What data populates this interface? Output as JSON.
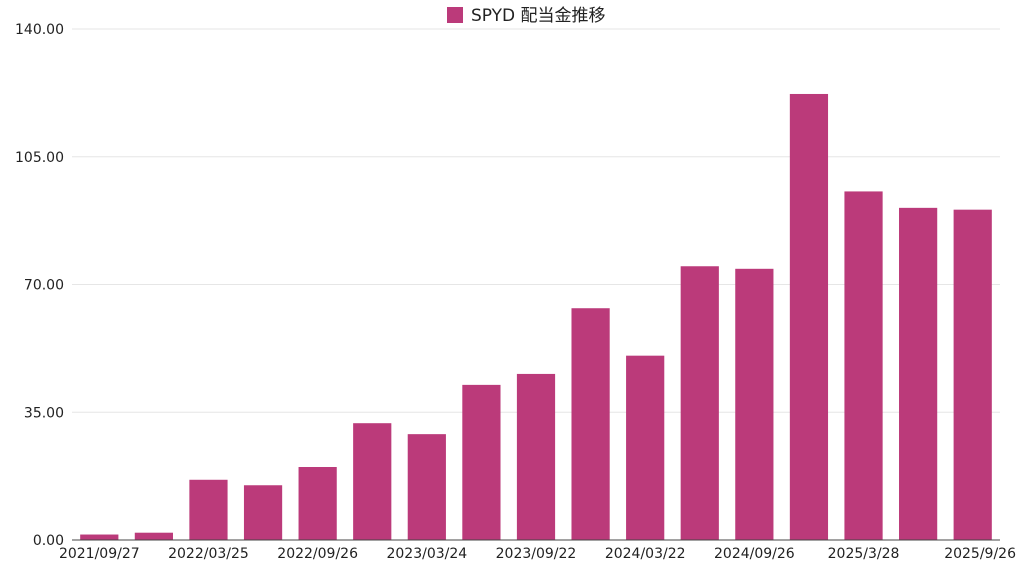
{
  "chart_data": {
    "type": "bar",
    "title": "SPYD 配当金推移",
    "legend": [
      {
        "name": "SPYD 配当金推移",
        "color": "#bb3a7a"
      }
    ],
    "categories": [
      "2021/09/27",
      "",
      "2022/03/25",
      "",
      "2022/09/26",
      "",
      "2023/03/24",
      "",
      "2023/09/22",
      "",
      "2024/03/22",
      "",
      "2024/09/26",
      "",
      "2025/3/28",
      "",
      "2025/9/26"
    ],
    "x_tick_labels": [
      "2021/09/27",
      "2022/03/25",
      "2022/09/26",
      "2023/03/24",
      "2023/09/22",
      "2024/03/22",
      "2024/09/26",
      "2025/3/28",
      "2025/9/26"
    ],
    "series": [
      {
        "name": "SPYD 配当金推移",
        "values": [
          1.5,
          2.0,
          16.5,
          15.0,
          20.0,
          32.0,
          29.0,
          42.5,
          45.5,
          63.5,
          50.5,
          75.0,
          74.3,
          122.2,
          95.5,
          91.0,
          90.5
        ]
      }
    ],
    "ylim": [
      0,
      140
    ],
    "y_ticks": [
      "0.00",
      "35.00",
      "70.00",
      "105.00",
      "140.00"
    ],
    "grid": true,
    "xlabel": "",
    "ylabel": "",
    "legend_position": "top-center",
    "colors": {
      "bar": "#bb3a7a",
      "grid": "#e6e6e6",
      "axis": "#444444"
    }
  }
}
